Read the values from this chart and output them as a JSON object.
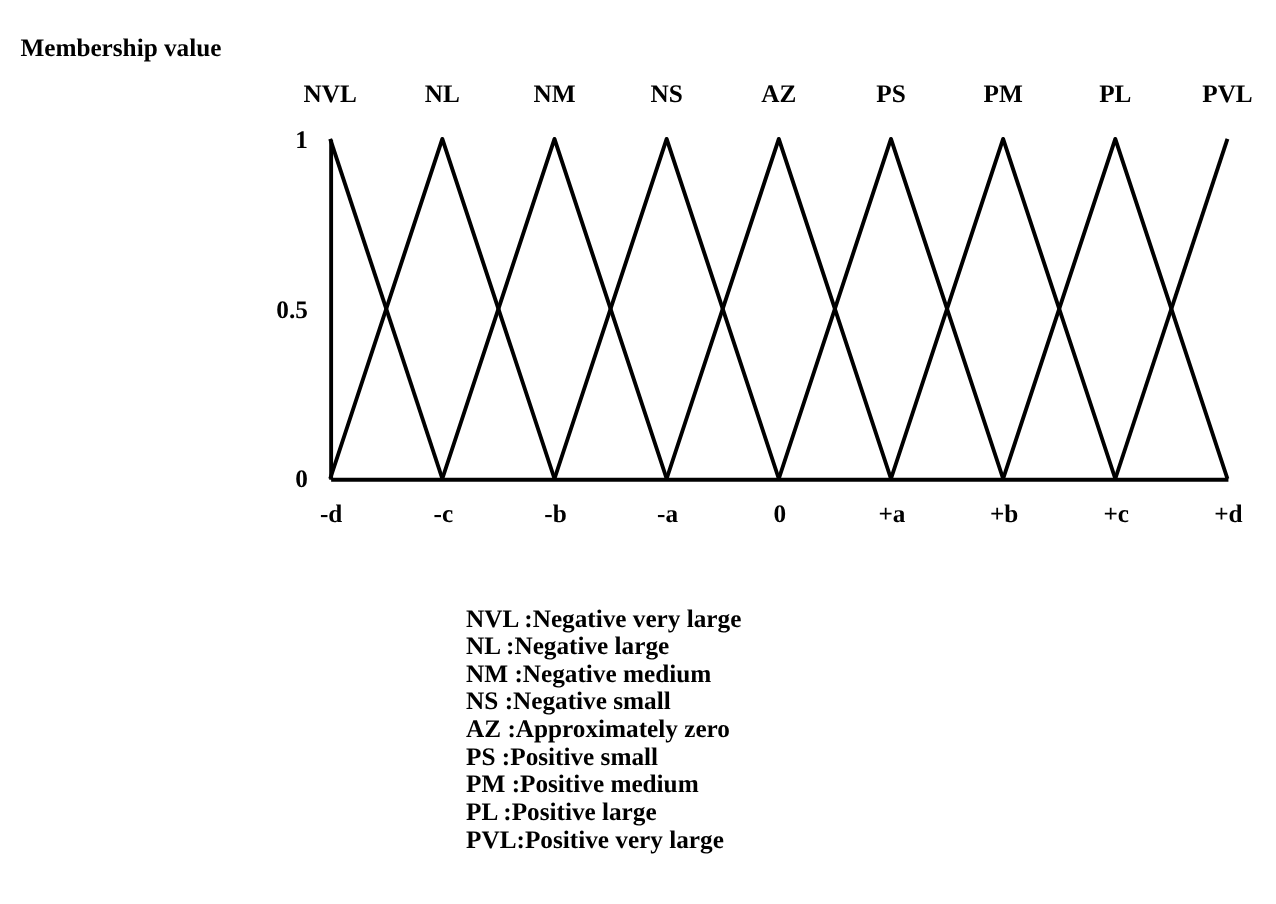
{
  "chart_data": {
    "type": "line",
    "ylabel": "Membership value",
    "categories": [
      "-d",
      "-c",
      "-b",
      "-a",
      "0",
      "+a",
      "+b",
      "+c",
      "+d"
    ],
    "series": [
      {
        "name": "NVL",
        "color": "#000000",
        "values": [
          1,
          0,
          null,
          null,
          null,
          null,
          null,
          null,
          null
        ]
      },
      {
        "name": "NL",
        "color": "#000000",
        "values": [
          0,
          1,
          0,
          null,
          null,
          null,
          null,
          null,
          null
        ]
      },
      {
        "name": "NM",
        "color": "#000000",
        "values": [
          null,
          0,
          1,
          0,
          null,
          null,
          null,
          null,
          null
        ]
      },
      {
        "name": "NS",
        "color": "#000000",
        "values": [
          null,
          null,
          0,
          1,
          0,
          null,
          null,
          null,
          null
        ]
      },
      {
        "name": "AZ",
        "color": "#000000",
        "values": [
          null,
          null,
          null,
          0,
          1,
          0,
          null,
          null,
          null
        ]
      },
      {
        "name": "PS",
        "color": "#000000",
        "values": [
          null,
          null,
          null,
          null,
          0,
          1,
          0,
          null,
          null
        ]
      },
      {
        "name": "PM",
        "color": "#000000",
        "values": [
          null,
          null,
          null,
          null,
          null,
          0,
          1,
          0,
          null
        ]
      },
      {
        "name": "PL",
        "color": "#000000",
        "values": [
          null,
          null,
          null,
          null,
          null,
          null,
          0,
          1,
          0
        ]
      },
      {
        "name": "PVL",
        "color": "#000000",
        "values": [
          null,
          null,
          null,
          null,
          null,
          null,
          null,
          0,
          1
        ]
      }
    ],
    "ylim": [
      0,
      1
    ],
    "yticks": [
      0,
      0.5,
      1
    ],
    "grid": false,
    "legend": false,
    "marker": "none",
    "annotations": [
      "NVL :Negative very large",
      "NL   :Negative large",
      "NM  :Negative medium",
      "NS   :Negative small",
      "AZ   :Approximately zero",
      "PS   :Positive small",
      "PM  :Positive medium",
      "PL   :Positive large",
      "PVL:Positive very large"
    ]
  }
}
